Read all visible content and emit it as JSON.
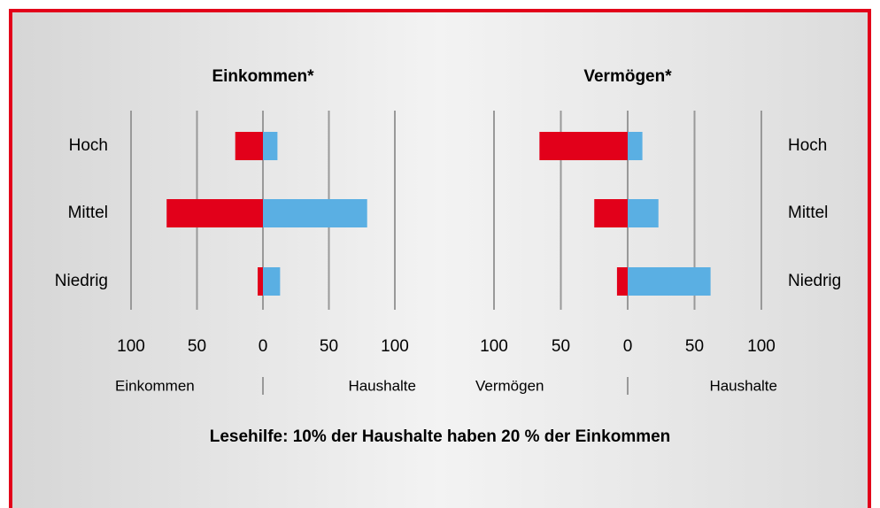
{
  "chart_data": [
    {
      "type": "bar",
      "orientation": "horizontal",
      "title": "Einkommen*",
      "categories": [
        "Hoch",
        "Mittel",
        "Niedrig"
      ],
      "category_side": "left",
      "series": [
        {
          "name": "Einkommen",
          "color": "#e2001a",
          "values": [
            -21,
            -73,
            -4
          ]
        },
        {
          "name": "Haushalte",
          "color": "#5aafe3",
          "values": [
            11,
            79,
            13
          ]
        }
      ],
      "xlim": [
        -100,
        100
      ],
      "xticks": [
        {
          "value": -100,
          "label": "100"
        },
        {
          "value": -50,
          "label": "50"
        },
        0,
        50,
        100
      ],
      "grid": true
    },
    {
      "type": "bar",
      "orientation": "horizontal",
      "title": "Vermögen*",
      "categories": [
        "Hoch",
        "Mittel",
        "Niedrig"
      ],
      "category_side": "right",
      "series": [
        {
          "name": "Vermögen",
          "color": "#e2001a",
          "values": [
            -66,
            -25,
            -8
          ]
        },
        {
          "name": "Haushalte",
          "color": "#5aafe3",
          "values": [
            11,
            23,
            62
          ]
        }
      ],
      "xlim": [
        -100,
        100
      ],
      "xticks": [
        {
          "value": -100,
          "label": "100"
        },
        {
          "value": -50,
          "label": "50"
        },
        0,
        50,
        100
      ],
      "grid": true
    }
  ],
  "caption": "Lesehilfe: 10% der Haushalte haben 20 % der Einkommen"
}
